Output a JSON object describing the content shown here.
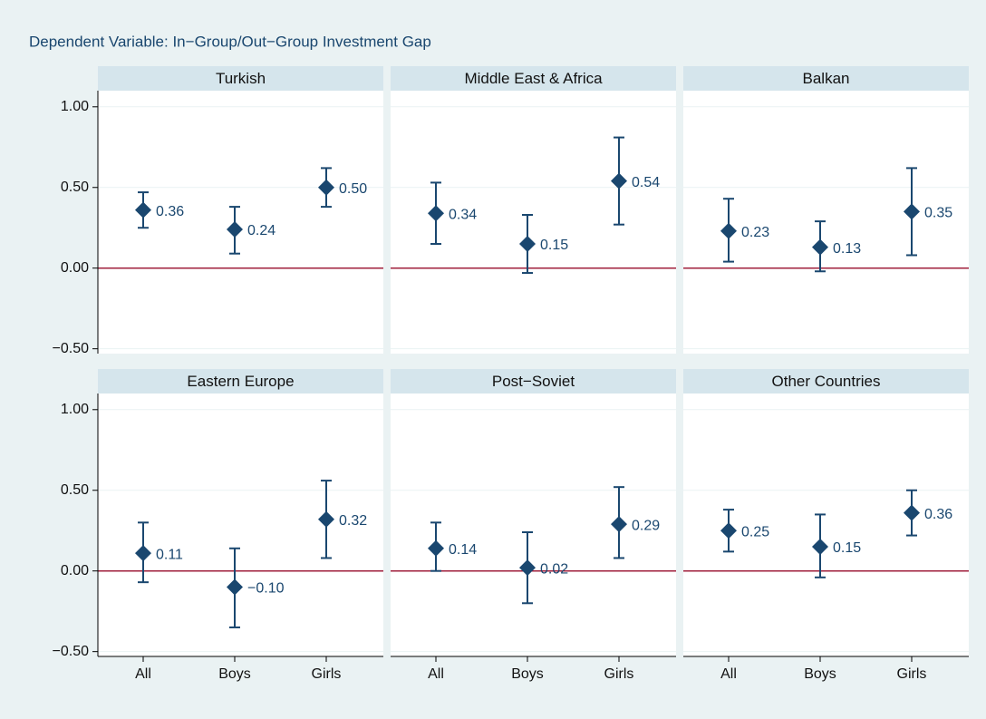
{
  "title": "Dependent Variable: In−Group/Out−Group Investment Gap",
  "chart_data": [
    {
      "type": "errorbar",
      "title": "Turkish",
      "values": [
        0.36,
        0.24,
        0.5
      ],
      "value_labels": [
        "0.36",
        "0.24",
        "0.50"
      ],
      "ci_low": [
        0.25,
        0.09,
        0.38
      ],
      "ci_high": [
        0.47,
        0.38,
        0.62
      ],
      "color": "#1a476f",
      "refline": 0,
      "refline_color": "#a0203c",
      "ylim": [
        -0.53,
        1.1
      ],
      "yticks": [
        {
          "value": -0.5,
          "label": "−0.50"
        },
        {
          "value": 0,
          "label": "0.00"
        },
        {
          "value": 0.5,
          "label": "0.50"
        },
        {
          "value": 1,
          "label": "1.00"
        }
      ],
      "grid": true
    },
    {
      "type": "errorbar",
      "title": "Middle East & Africa",
      "values": [
        0.34,
        0.15,
        0.54
      ],
      "value_labels": [
        "0.34",
        "0.15",
        "0.54"
      ],
      "ci_low": [
        0.15,
        -0.03,
        0.27
      ],
      "ci_high": [
        0.53,
        0.33,
        0.81
      ],
      "color": "#1a476f",
      "refline": 0,
      "refline_color": "#a0203c",
      "ylim": [
        -0.53,
        1.1
      ],
      "yticks": [
        -0.5,
        0,
        0.5,
        1
      ],
      "grid": true
    },
    {
      "type": "errorbar",
      "title": "Balkan",
      "values": [
        0.23,
        0.13,
        0.35
      ],
      "value_labels": [
        "0.23",
        "0.13",
        "0.35"
      ],
      "ci_low": [
        0.04,
        -0.02,
        0.08
      ],
      "ci_high": [
        0.43,
        0.29,
        0.62
      ],
      "color": "#1a476f",
      "refline": 0,
      "refline_color": "#a0203c",
      "ylim": [
        -0.53,
        1.1
      ],
      "yticks": [
        -0.5,
        0,
        0.5,
        1
      ],
      "grid": true
    },
    {
      "type": "errorbar",
      "title": "Eastern Europe",
      "categories": [
        "All",
        "Boys",
        "Girls"
      ],
      "values": [
        0.11,
        -0.1,
        0.32
      ],
      "value_labels": [
        "0.11",
        "−0.10",
        "0.32"
      ],
      "ci_low": [
        -0.07,
        -0.35,
        0.08
      ],
      "ci_high": [
        0.3,
        0.14,
        0.56
      ],
      "color": "#1a476f",
      "refline": 0,
      "refline_color": "#a0203c",
      "ylim": [
        -0.53,
        1.1
      ],
      "yticks": [
        {
          "value": -0.5,
          "label": "−0.50"
        },
        {
          "value": 0,
          "label": "0.00"
        },
        {
          "value": 0.5,
          "label": "0.50"
        },
        {
          "value": 1,
          "label": "1.00"
        }
      ],
      "grid": true
    },
    {
      "type": "errorbar",
      "title": "Post−Soviet",
      "categories": [
        "All",
        "Boys",
        "Girls"
      ],
      "values": [
        0.14,
        0.02,
        0.29
      ],
      "value_labels": [
        "0.14",
        "0.02",
        "0.29"
      ],
      "ci_low": [
        0.0,
        -0.2,
        0.08
      ],
      "ci_high": [
        0.3,
        0.24,
        0.52
      ],
      "color": "#1a476f",
      "refline": 0,
      "refline_color": "#a0203c",
      "ylim": [
        -0.53,
        1.1
      ],
      "yticks": [
        -0.5,
        0,
        0.5,
        1
      ],
      "grid": true
    },
    {
      "type": "errorbar",
      "title": "Other Countries",
      "categories": [
        "All",
        "Boys",
        "Girls"
      ],
      "values": [
        0.25,
        0.15,
        0.36
      ],
      "value_labels": [
        "0.25",
        "0.15",
        "0.36"
      ],
      "ci_low": [
        0.12,
        -0.04,
        0.22
      ],
      "ci_high": [
        0.38,
        0.35,
        0.5
      ],
      "color": "#1a476f",
      "refline": 0,
      "refline_color": "#a0203c",
      "ylim": [
        -0.53,
        1.1
      ],
      "yticks": [
        -0.5,
        0,
        0.5,
        1
      ],
      "grid": true
    }
  ]
}
